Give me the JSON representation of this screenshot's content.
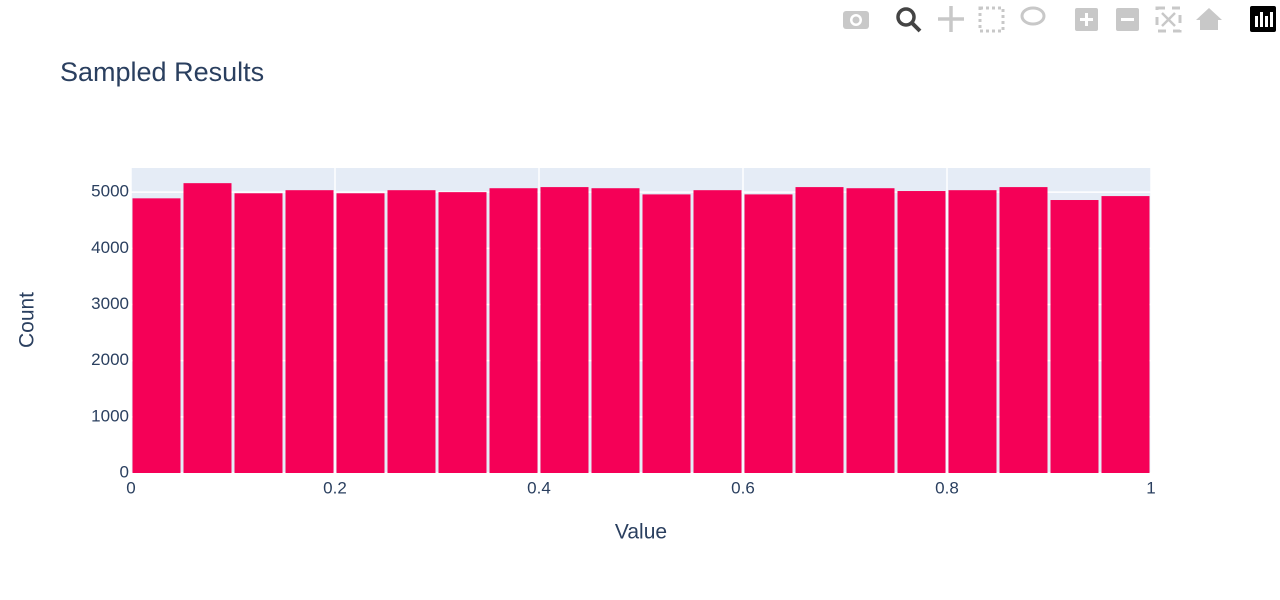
{
  "chart_data": {
    "type": "histogram",
    "title": "Sampled Results",
    "x_label": "Value",
    "y_label": "Count",
    "bins": [
      0,
      0.05,
      0.1,
      0.15,
      0.2,
      0.25,
      0.3,
      0.35,
      0.4,
      0.45,
      0.5,
      0.55,
      0.6,
      0.65,
      0.7,
      0.75,
      0.8,
      0.85,
      0.9,
      0.95,
      1
    ],
    "values": [
      4890,
      5160,
      4980,
      5035,
      4980,
      5035,
      5000,
      5070,
      5090,
      5070,
      4960,
      5035,
      4960,
      5090,
      5070,
      5020,
      5035,
      5090,
      4860,
      4930
    ],
    "color": "#f50057",
    "xlim": [
      0,
      1
    ],
    "xticks": [
      0,
      0.2,
      0.4,
      0.6,
      0.8,
      1
    ],
    "ylim": [
      0,
      5430
    ],
    "yticks": [
      0,
      1000,
      2000,
      3000,
      4000,
      5000
    ],
    "grid": true
  }
}
